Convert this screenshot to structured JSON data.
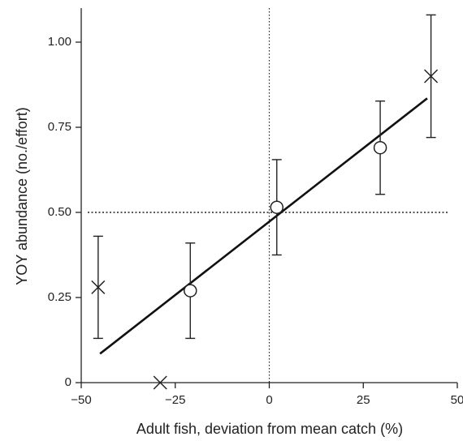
{
  "chart_data": {
    "type": "scatter",
    "x_label": "Adult fish, deviation from mean catch (%)",
    "y_label": "YOY abundance (no./effort)",
    "xlim": [
      -50,
      50
    ],
    "ylim": [
      0,
      1.1
    ],
    "xticks": [
      {
        "value": -50,
        "label": "−50"
      },
      {
        "value": -25,
        "label": "−25"
      },
      0,
      25,
      50
    ],
    "yticks": [
      0,
      0.25,
      {
        "value": 0.5,
        "label": "0.50"
      },
      0.75,
      {
        "value": 1,
        "label": "1.00"
      }
    ],
    "series": [
      {
        "marker": "circle",
        "color": "#222222",
        "x": [
          -21,
          2,
          29.5
        ],
        "values": [
          0.27,
          0.515,
          0.69
        ],
        "errors": [
          0.14,
          0.14,
          0.137
        ]
      },
      {
        "marker": "cross",
        "color": "#222222",
        "x": [
          -45.5,
          -29,
          43
        ],
        "values": [
          0.28,
          0,
          0.9
        ],
        "errors": [
          0.15,
          null,
          0.18
        ]
      }
    ],
    "fit": {
      "color": "#111111",
      "x": [
        -45,
        42
      ],
      "values": [
        0.085,
        0.835
      ]
    },
    "reference_lines": {
      "x": 0,
      "y": 0.5
    }
  }
}
